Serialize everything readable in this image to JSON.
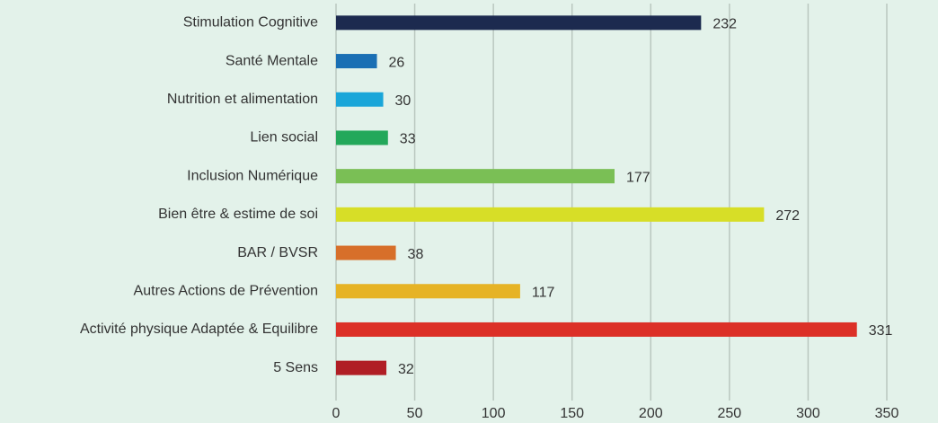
{
  "chart_data": {
    "type": "barh",
    "categories": [
      "Stimulation Cognitive",
      "Santé Mentale",
      "Nutrition et alimentation",
      "Lien social",
      "Inclusion Numérique",
      "Bien être & estime de soi",
      "BAR / BVSR",
      "Autres Actions de Prévention",
      "Activité physique Adaptée & Equilibre",
      "5 Sens"
    ],
    "values": [
      232,
      26,
      30,
      33,
      177,
      272,
      38,
      117,
      331,
      32
    ],
    "colors": [
      "#1c2a4f",
      "#1a6fb4",
      "#1aa6d9",
      "#23a85a",
      "#7abf55",
      "#d7de27",
      "#d76f2a",
      "#e6b325",
      "#dc3027",
      "#b01e25"
    ],
    "xlim": [
      0,
      350
    ],
    "xticks": [
      0,
      50,
      100,
      150,
      200,
      250,
      300,
      350
    ],
    "grid": true
  }
}
